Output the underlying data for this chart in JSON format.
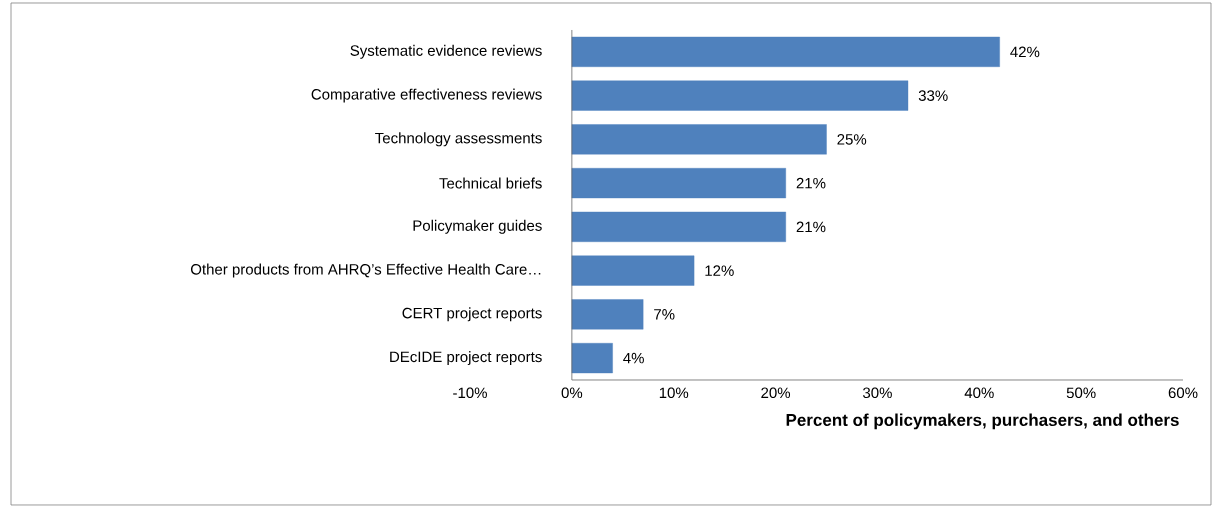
{
  "chart_data": {
    "type": "bar",
    "orientation": "horizontal",
    "xlabel": "Percent of policymakers, purchasers, and others",
    "categories": [
      "Systematic evidence reviews",
      "Comparative effectiveness reviews",
      "Technology assessments",
      "Technical briefs",
      "Policymaker guides",
      "Other products from AHRQ’s Effective Health Care…",
      "CERT project reports",
      "DEcIDE project reports"
    ],
    "values": [
      42,
      33,
      25,
      21,
      21,
      12,
      7,
      4
    ],
    "value_labels": [
      "42%",
      "33%",
      "25%",
      "21%",
      "21%",
      "12%",
      "7%",
      "4%"
    ],
    "color": "#4f81bd",
    "xlim": [
      -10,
      60
    ],
    "xticks": [
      {
        "value": -10,
        "label": "-10%"
      },
      {
        "value": 0,
        "label": "0%"
      },
      {
        "value": 10,
        "label": "10%"
      },
      {
        "value": 20,
        "label": "20%"
      },
      {
        "value": 30,
        "label": "30%"
      },
      {
        "value": 40,
        "label": "40%"
      },
      {
        "value": 50,
        "label": "50%"
      },
      {
        "value": 60,
        "label": "60%"
      }
    ]
  }
}
